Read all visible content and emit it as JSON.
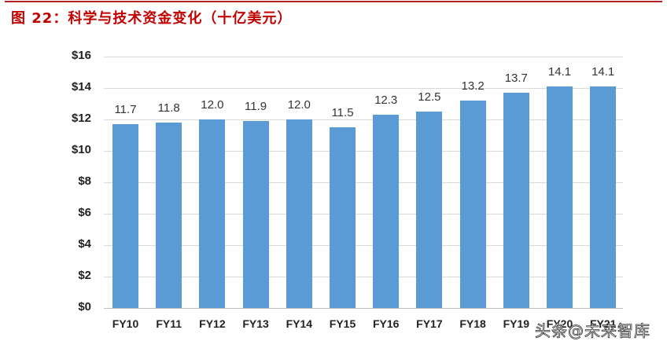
{
  "figure": {
    "title": "图 22：科学与技术资金变化（十亿美元）",
    "rule_color": "#b22222",
    "title_color": "#c00000"
  },
  "watermark": "头条@未来智库",
  "chart_data": {
    "type": "bar",
    "title": "科学与技术资金变化（十亿美元）",
    "xlabel": "",
    "ylabel": "",
    "categories": [
      "FY10",
      "FY11",
      "FY12",
      "FY13",
      "FY14",
      "FY15",
      "FY16",
      "FY17",
      "FY18",
      "FY19",
      "FY20",
      "FY21"
    ],
    "values": [
      11.7,
      11.8,
      12.0,
      11.9,
      12.0,
      11.5,
      12.3,
      12.5,
      13.2,
      13.7,
      14.1,
      14.1
    ],
    "data_labels": [
      "11.7",
      "11.8",
      "12.0",
      "11.9",
      "12.0",
      "11.5",
      "12.3",
      "12.5",
      "13.2",
      "13.7",
      "14.1",
      "14.1"
    ],
    "ylim": [
      0,
      16
    ],
    "yticks": [
      0,
      2,
      4,
      6,
      8,
      10,
      12,
      14,
      16
    ],
    "ytick_labels": [
      "$0",
      "$2",
      "$4",
      "$6",
      "$8",
      "$10",
      "$12",
      "$14",
      "$16"
    ],
    "grid": true,
    "legend": null,
    "bar_color": "#5b9bd5"
  }
}
